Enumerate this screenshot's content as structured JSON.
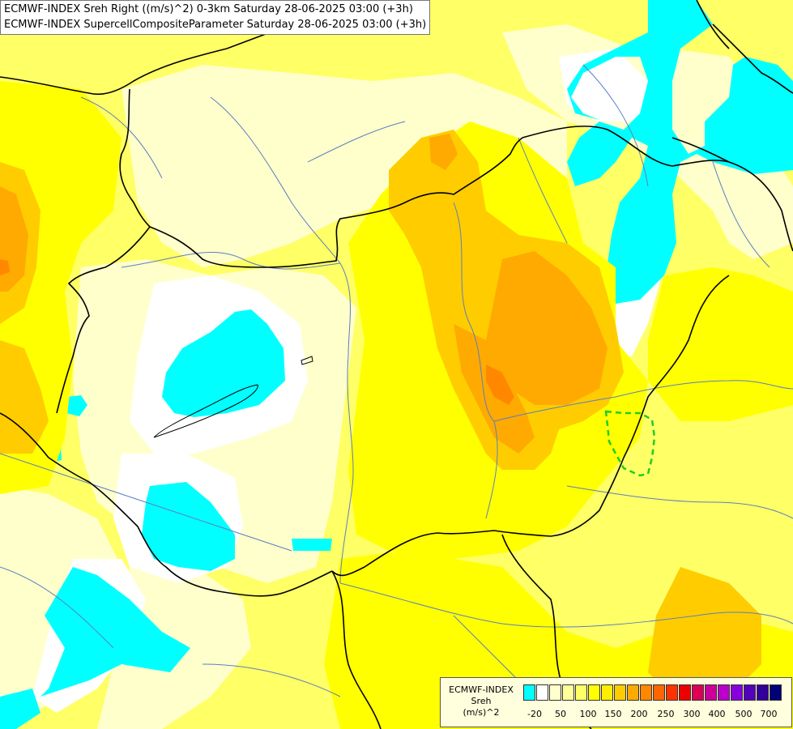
{
  "title": {
    "line1": "ECMWF-INDEX Sreh Right ((m/s)^2) 0-3km Saturday 28-06-2025 03:00 (+3h)",
    "line2": "ECMWF-INDEX SupercellCompositeParameter Saturday 28-06-2025 03:00 (+3h)"
  },
  "legend": {
    "model": "ECMWF-INDEX",
    "param": "Sreh",
    "unit": "(m/s)^2",
    "colors": [
      "#00ffff",
      "#ffffff",
      "#ffffcc",
      "#ffff99",
      "#ffff66",
      "#ffff00",
      "#ffee00",
      "#ffcc00",
      "#ffaa00",
      "#ff8800",
      "#ff6600",
      "#ff3300",
      "#ee0000",
      "#dd0055",
      "#cc0099",
      "#bb00cc",
      "#8800dd",
      "#5500bb",
      "#330099",
      "#000077"
    ],
    "ticks": [
      "-20",
      "50",
      "100",
      "150",
      "200",
      "250",
      "300",
      "400",
      "500",
      "700"
    ]
  },
  "contour_overlay": {
    "parameter": "SupercellCompositeParameter",
    "color": "#22cc22",
    "style": "dashed"
  }
}
